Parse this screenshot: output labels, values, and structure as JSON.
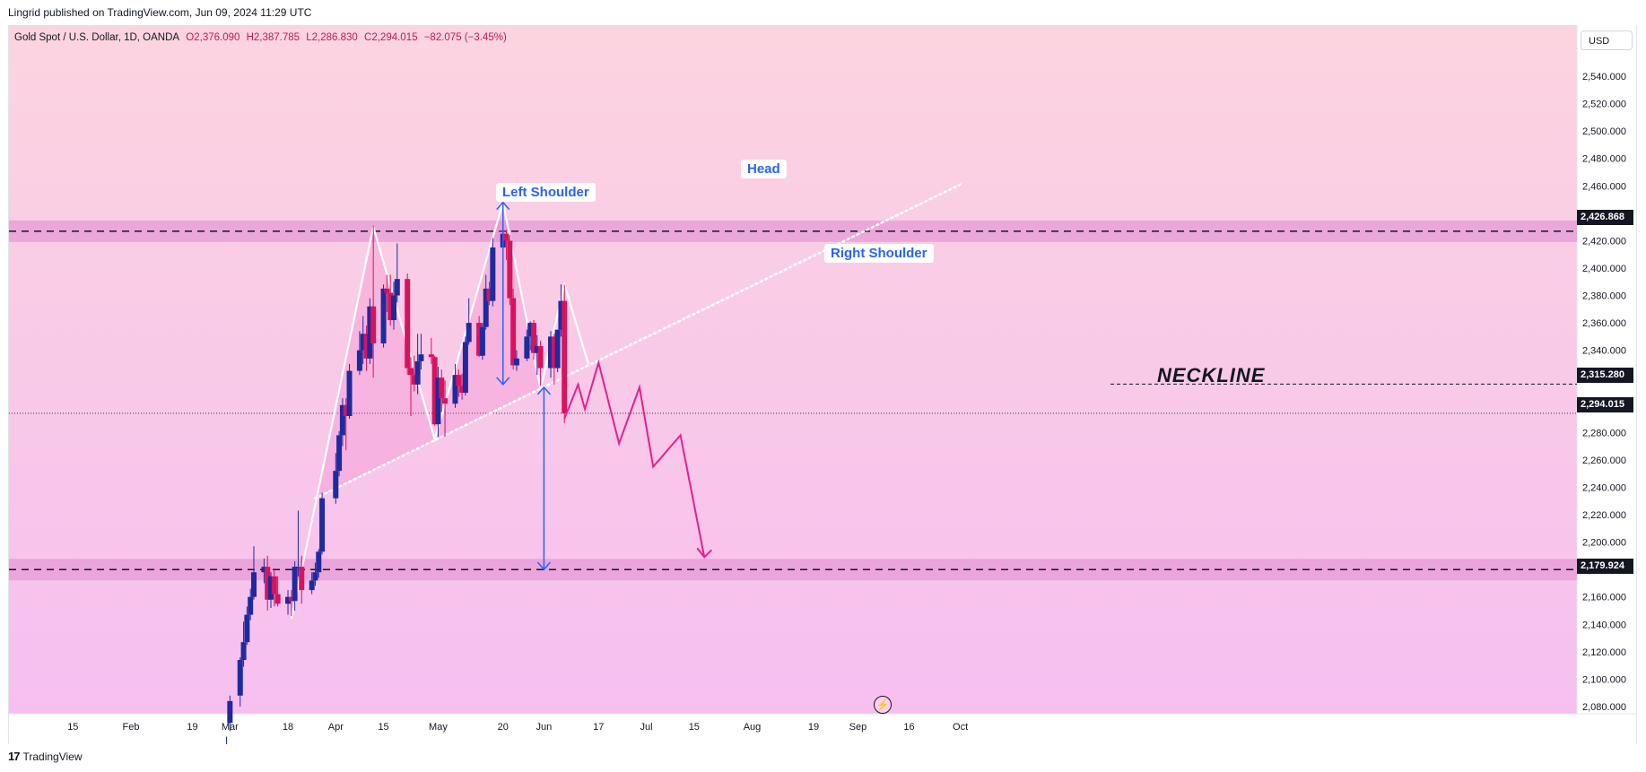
{
  "header": {
    "published_by": "Lingrid published on TradingView.com, Jun 09, 2024 11:29 UTC"
  },
  "symbol": {
    "name": "Gold Spot / U.S. Dollar, 1D, OANDA",
    "open": "O2,376.090",
    "high": "H2,387.785",
    "low": "L2,286.830",
    "close": "C2,294.015",
    "change": "−82.075 (−3.45%)"
  },
  "currency_button": "USD",
  "footer": {
    "logo_text": "TradingView"
  },
  "annotations": {
    "left_shoulder": "Left Shoulder",
    "head": "Head",
    "right_shoulder": "Right Shoulder",
    "neckline": "NECKLINE"
  },
  "price_labels": {
    "resistance": "2,426.868",
    "neckline": "2,315.280",
    "last": "2,294.015",
    "support": "2,179.924"
  },
  "colors": {
    "bull": "#1e2a9e",
    "bear": "#d6135c",
    "projection": "#e91e8c",
    "callout_text": "#2962ff",
    "band": "#e79ad6",
    "bg_top": "#fcd4e0",
    "bg_bottom": "#f6bff0"
  },
  "chart_data": {
    "type": "candlestick",
    "title": "Gold Spot / U.S. Dollar, 1D, OANDA",
    "y_ticks": [
      "2,080.000",
      "2,100.000",
      "2,120.000",
      "2,140.000",
      "2,160.000",
      "2,180.000",
      "2,200.000",
      "2,220.000",
      "2,240.000",
      "2,260.000",
      "2,280.000",
      "2,300.000",
      "2,320.000",
      "2,340.000",
      "2,360.000",
      "2,380.000",
      "2,400.000",
      "2,420.000",
      "2,440.000",
      "2,460.000",
      "2,480.000",
      "2,500.000",
      "2,520.000",
      "2,540.000"
    ],
    "x_ticks": [
      "15",
      "Feb",
      "19",
      "Mar",
      "18",
      "Apr",
      "15",
      "May",
      "20",
      "Jun",
      "17",
      "Jul",
      "15",
      "Aug",
      "19",
      "Sep",
      "16",
      "Oct"
    ],
    "ylim": [
      2072,
      2552
    ],
    "levels": {
      "resistance": 2426.868,
      "neckline": 2315.28,
      "last": 2294.015,
      "support": 2179.924
    },
    "candles": [
      {
        "date": "2024-02-29",
        "o": 2042,
        "h": 2058,
        "l": 2035,
        "c": 2050
      },
      {
        "date": "2024-03-01",
        "o": 2068,
        "h": 2088,
        "l": 2062,
        "c": 2084
      },
      {
        "date": "2024-03-04",
        "o": 2088,
        "h": 2116,
        "l": 2080,
        "c": 2114
      },
      {
        "date": "2024-03-05",
        "o": 2114,
        "h": 2142,
        "l": 2109,
        "c": 2127
      },
      {
        "date": "2024-03-06",
        "o": 2127,
        "h": 2153,
        "l": 2125,
        "c": 2147
      },
      {
        "date": "2024-03-07",
        "o": 2147,
        "h": 2166,
        "l": 2143,
        "c": 2160
      },
      {
        "date": "2024-03-08",
        "o": 2160,
        "h": 2197,
        "l": 2158,
        "c": 2178
      },
      {
        "date": "2024-03-11",
        "o": 2178,
        "h": 2188,
        "l": 2170,
        "c": 2182
      },
      {
        "date": "2024-03-12",
        "o": 2182,
        "h": 2190,
        "l": 2150,
        "c": 2158
      },
      {
        "date": "2024-03-13",
        "o": 2158,
        "h": 2178,
        "l": 2152,
        "c": 2175
      },
      {
        "date": "2024-03-14",
        "o": 2175,
        "h": 2180,
        "l": 2153,
        "c": 2162
      },
      {
        "date": "2024-03-15",
        "o": 2162,
        "h": 2175,
        "l": 2153,
        "c": 2155
      },
      {
        "date": "2024-03-18",
        "o": 2155,
        "h": 2165,
        "l": 2147,
        "c": 2160
      },
      {
        "date": "2024-03-19",
        "o": 2160,
        "h": 2165,
        "l": 2146,
        "c": 2157
      },
      {
        "date": "2024-03-20",
        "o": 2157,
        "h": 2186,
        "l": 2150,
        "c": 2182
      },
      {
        "date": "2024-03-21",
        "o": 2182,
        "h": 2223,
        "l": 2175,
        "c": 2182
      },
      {
        "date": "2024-03-22",
        "o": 2182,
        "h": 2190,
        "l": 2155,
        "c": 2165
      },
      {
        "date": "2024-03-25",
        "o": 2165,
        "h": 2178,
        "l": 2162,
        "c": 2172
      },
      {
        "date": "2024-03-26",
        "o": 2172,
        "h": 2185,
        "l": 2168,
        "c": 2178
      },
      {
        "date": "2024-03-27",
        "o": 2178,
        "h": 2195,
        "l": 2174,
        "c": 2193
      },
      {
        "date": "2024-03-28",
        "o": 2193,
        "h": 2236,
        "l": 2191,
        "c": 2232
      },
      {
        "date": "2024-04-01",
        "o": 2232,
        "h": 2265,
        "l": 2228,
        "c": 2252
      },
      {
        "date": "2024-04-02",
        "o": 2252,
        "h": 2281,
        "l": 2248,
        "c": 2278
      },
      {
        "date": "2024-04-03",
        "o": 2278,
        "h": 2305,
        "l": 2270,
        "c": 2300
      },
      {
        "date": "2024-04-04",
        "o": 2300,
        "h": 2305,
        "l": 2267,
        "c": 2292
      },
      {
        "date": "2024-04-05",
        "o": 2292,
        "h": 2330,
        "l": 2290,
        "c": 2325
      },
      {
        "date": "2024-04-08",
        "o": 2325,
        "h": 2354,
        "l": 2322,
        "c": 2340
      },
      {
        "date": "2024-04-09",
        "o": 2340,
        "h": 2365,
        "l": 2330,
        "c": 2352
      },
      {
        "date": "2024-04-10",
        "o": 2352,
        "h": 2358,
        "l": 2325,
        "c": 2334
      },
      {
        "date": "2024-04-11",
        "o": 2334,
        "h": 2378,
        "l": 2330,
        "c": 2372
      },
      {
        "date": "2024-04-12",
        "o": 2372,
        "h": 2431,
        "l": 2320,
        "c": 2345
      },
      {
        "date": "2024-04-15",
        "o": 2345,
        "h": 2388,
        "l": 2342,
        "c": 2385
      },
      {
        "date": "2024-04-16",
        "o": 2385,
        "h": 2395,
        "l": 2368,
        "c": 2382
      },
      {
        "date": "2024-04-17",
        "o": 2382,
        "h": 2395,
        "l": 2358,
        "c": 2362
      },
      {
        "date": "2024-04-18",
        "o": 2362,
        "h": 2390,
        "l": 2355,
        "c": 2380
      },
      {
        "date": "2024-04-19",
        "o": 2380,
        "h": 2418,
        "l": 2375,
        "c": 2392
      },
      {
        "date": "2024-04-22",
        "o": 2392,
        "h": 2396,
        "l": 2322,
        "c": 2327
      },
      {
        "date": "2024-04-23",
        "o": 2327,
        "h": 2335,
        "l": 2292,
        "c": 2322
      },
      {
        "date": "2024-04-24",
        "o": 2322,
        "h": 2336,
        "l": 2310,
        "c": 2315
      },
      {
        "date": "2024-04-25",
        "o": 2315,
        "h": 2352,
        "l": 2308,
        "c": 2332
      },
      {
        "date": "2024-04-26",
        "o": 2332,
        "h": 2352,
        "l": 2326,
        "c": 2337
      },
      {
        "date": "2024-04-29",
        "o": 2337,
        "h": 2349,
        "l": 2330,
        "c": 2335
      },
      {
        "date": "2024-04-30",
        "o": 2335,
        "h": 2336,
        "l": 2285,
        "c": 2286
      },
      {
        "date": "2024-05-01",
        "o": 2286,
        "h": 2328,
        "l": 2277,
        "c": 2320
      },
      {
        "date": "2024-05-02",
        "o": 2320,
        "h": 2326,
        "l": 2295,
        "c": 2305
      },
      {
        "date": "2024-05-03",
        "o": 2305,
        "h": 2318,
        "l": 2277,
        "c": 2301
      },
      {
        "date": "2024-05-06",
        "o": 2301,
        "h": 2330,
        "l": 2298,
        "c": 2322
      },
      {
        "date": "2024-05-07",
        "o": 2322,
        "h": 2326,
        "l": 2306,
        "c": 2314
      },
      {
        "date": "2024-05-08",
        "o": 2314,
        "h": 2323,
        "l": 2304,
        "c": 2309
      },
      {
        "date": "2024-05-09",
        "o": 2309,
        "h": 2350,
        "l": 2307,
        "c": 2346
      },
      {
        "date": "2024-05-10",
        "o": 2346,
        "h": 2378,
        "l": 2344,
        "c": 2360
      },
      {
        "date": "2024-05-13",
        "o": 2360,
        "h": 2365,
        "l": 2335,
        "c": 2336
      },
      {
        "date": "2024-05-14",
        "o": 2336,
        "h": 2360,
        "l": 2333,
        "c": 2357
      },
      {
        "date": "2024-05-15",
        "o": 2357,
        "h": 2395,
        "l": 2355,
        "c": 2385
      },
      {
        "date": "2024-05-16",
        "o": 2385,
        "h": 2390,
        "l": 2373,
        "c": 2376
      },
      {
        "date": "2024-05-17",
        "o": 2376,
        "h": 2422,
        "l": 2372,
        "c": 2415
      },
      {
        "date": "2024-05-20",
        "o": 2415,
        "h": 2450,
        "l": 2412,
        "c": 2425
      },
      {
        "date": "2024-05-21",
        "o": 2425,
        "h": 2428,
        "l": 2406,
        "c": 2420
      },
      {
        "date": "2024-05-22",
        "o": 2420,
        "h": 2424,
        "l": 2373,
        "c": 2378
      },
      {
        "date": "2024-05-23",
        "o": 2378,
        "h": 2385,
        "l": 2326,
        "c": 2329
      },
      {
        "date": "2024-05-24",
        "o": 2329,
        "h": 2340,
        "l": 2325,
        "c": 2334
      },
      {
        "date": "2024-05-27",
        "o": 2334,
        "h": 2355,
        "l": 2332,
        "c": 2350
      },
      {
        "date": "2024-05-28",
        "o": 2350,
        "h": 2361,
        "l": 2340,
        "c": 2360
      },
      {
        "date": "2024-05-29",
        "o": 2360,
        "h": 2362,
        "l": 2333,
        "c": 2338
      },
      {
        "date": "2024-05-30",
        "o": 2338,
        "h": 2351,
        "l": 2322,
        "c": 2343
      },
      {
        "date": "2024-05-31",
        "o": 2343,
        "h": 2347,
        "l": 2314,
        "c": 2327
      },
      {
        "date": "2024-06-03",
        "o": 2327,
        "h": 2354,
        "l": 2320,
        "c": 2350
      },
      {
        "date": "2024-06-04",
        "o": 2350,
        "h": 2352,
        "l": 2315,
        "c": 2327
      },
      {
        "date": "2024-06-05",
        "o": 2327,
        "h": 2355,
        "l": 2324,
        "c": 2355
      },
      {
        "date": "2024-06-06",
        "o": 2355,
        "h": 2388,
        "l": 2350,
        "c": 2376
      },
      {
        "date": "2024-06-07",
        "o": 2376,
        "h": 2387.785,
        "l": 2286.83,
        "c": 2294.015
      }
    ],
    "pattern_path": [
      {
        "date": "2024-03-19",
        "y": 2144
      },
      {
        "date": "2024-04-12",
        "y": 2430
      },
      {
        "date": "2024-04-30",
        "y": 2275
      },
      {
        "date": "2024-05-20",
        "y": 2448
      },
      {
        "date": "2024-05-31",
        "y": 2312
      },
      {
        "date": "2024-06-07",
        "y": 2388
      },
      {
        "date": "2024-06-14",
        "y": 2330
      }
    ],
    "neckline_trend": [
      {
        "date": "2024-03-26",
        "y": 2232
      },
      {
        "date": "2024-10-01",
        "y": 2461
      }
    ],
    "projection_path": [
      {
        "date": "2024-06-07",
        "y": 2290
      },
      {
        "date": "2024-06-11",
        "y": 2315
      },
      {
        "date": "2024-06-13",
        "y": 2297
      },
      {
        "date": "2024-06-17",
        "y": 2331
      },
      {
        "date": "2024-06-23",
        "y": 2272
      },
      {
        "date": "2024-06-29",
        "y": 2313
      },
      {
        "date": "2024-07-03",
        "y": 2255
      },
      {
        "date": "2024-07-11",
        "y": 2278
      },
      {
        "date": "2024-07-18",
        "y": 2189
      }
    ],
    "measure_arrows": [
      {
        "date": "2024-05-20",
        "from": 2315,
        "to": 2448
      },
      {
        "date": "2024-06-01",
        "from": 2313,
        "to": 2180
      }
    ]
  }
}
